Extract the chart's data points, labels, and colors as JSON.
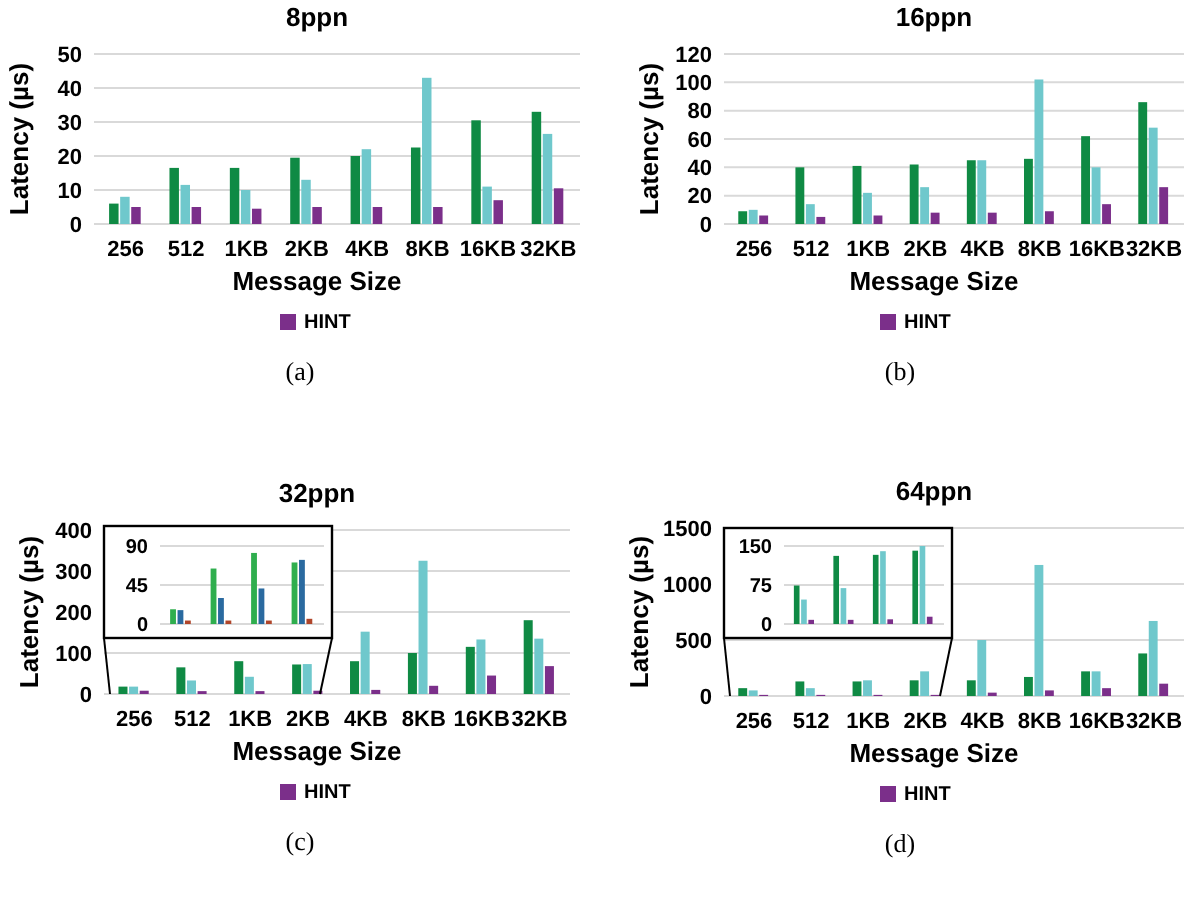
{
  "chart_data": [
    {
      "type": "bar",
      "title": "8ppn",
      "xlabel": "Message Size",
      "ylabel": "Latency (µs)",
      "categories": [
        "256",
        "512",
        "1KB",
        "2KB",
        "4KB",
        "8KB",
        "16KB",
        "32KB"
      ],
      "ylim": [
        0,
        50
      ],
      "yticks": [
        0,
        10,
        20,
        30,
        40,
        50
      ],
      "grid": "y",
      "legend": "bottom",
      "annotations": [
        "(a)"
      ],
      "series": [
        {
          "color": "#0f8a44",
          "values": [
            6,
            16.5,
            16.5,
            19.5,
            20,
            22.5,
            30.5,
            33
          ]
        },
        {
          "color": "#6fc8cc",
          "values": [
            8,
            11.5,
            10,
            13,
            22,
            43,
            11,
            26.5
          ]
        },
        {
          "name": "HINT",
          "color": "#7b2f8a",
          "values": [
            5,
            5,
            4.5,
            5,
            5,
            5,
            7,
            10.5
          ]
        }
      ]
    },
    {
      "type": "bar",
      "title": "16ppn",
      "xlabel": "Message Size",
      "ylabel": "Latency (µs)",
      "categories": [
        "256",
        "512",
        "1KB",
        "2KB",
        "4KB",
        "8KB",
        "16KB",
        "32KB"
      ],
      "ylim": [
        0,
        120
      ],
      "yticks": [
        0,
        20,
        40,
        60,
        80,
        100,
        120
      ],
      "grid": "y",
      "legend": "bottom",
      "annotations": [
        "(b)"
      ],
      "series": [
        {
          "color": "#0f8a44",
          "values": [
            9,
            40,
            41,
            42,
            45,
            46,
            62,
            86
          ]
        },
        {
          "color": "#6fc8cc",
          "values": [
            10,
            14,
            22,
            26,
            45,
            102,
            40,
            68
          ]
        },
        {
          "name": "HINT",
          "color": "#7b2f8a",
          "values": [
            6,
            5,
            6,
            8,
            8,
            9,
            14,
            26
          ]
        }
      ]
    },
    {
      "type": "bar",
      "title": "32ppn",
      "xlabel": "Message Size",
      "ylabel": "Latency (µs)",
      "categories": [
        "256",
        "512",
        "1KB",
        "2KB",
        "4KB",
        "8KB",
        "16KB",
        "32KB"
      ],
      "ylim": [
        0,
        400
      ],
      "yticks": [
        0,
        100,
        200,
        300,
        400
      ],
      "grid": "y",
      "legend": "bottom",
      "annotations": [
        "(c)"
      ],
      "series": [
        {
          "color": "#0f8a44",
          "values": [
            18,
            65,
            80,
            72,
            80,
            100,
            115,
            180
          ]
        },
        {
          "color": "#6fc8cc",
          "values": [
            18,
            33,
            42,
            73,
            152,
            325,
            133,
            135
          ]
        },
        {
          "name": "HINT",
          "color": "#7b2f8a",
          "values": [
            8,
            7,
            7,
            8,
            10,
            20,
            45,
            68
          ]
        }
      ]
    },
    {
      "type": "bar",
      "categories": [
        null,
        null,
        null,
        null
      ],
      "ylim": [
        0,
        90
      ],
      "yticks": [
        0,
        45,
        90
      ],
      "grid": "y",
      "tick_labels": "y",
      "series": [
        {
          "color": "#2fae4e",
          "values": [
            17,
            64,
            82,
            71
          ]
        },
        {
          "color": "#2a6aa0",
          "values": [
            16,
            30,
            41,
            74
          ]
        },
        {
          "color": "#b0452a",
          "values": [
            4,
            4,
            4,
            6
          ]
        }
      ]
    },
    {
      "type": "bar",
      "title": "64ppn",
      "xlabel": "Message Size",
      "ylabel": "Latency (µs)",
      "categories": [
        "256",
        "512",
        "1KB",
        "2KB",
        "4KB",
        "8KB",
        "16KB",
        "32KB"
      ],
      "ylim": [
        0,
        1500
      ],
      "yticks": [
        0,
        500,
        1000,
        1500
      ],
      "grid": "y",
      "legend": "bottom",
      "annotations": [
        "(d)"
      ],
      "series": [
        {
          "color": "#0f8a44",
          "values": [
            70,
            130,
            130,
            140,
            140,
            170,
            220,
            380
          ]
        },
        {
          "color": "#6fc8cc",
          "values": [
            50,
            70,
            140,
            220,
            500,
            1170,
            220,
            670
          ]
        },
        {
          "name": "HINT",
          "color": "#7b2f8a",
          "values": [
            10,
            10,
            10,
            10,
            30,
            50,
            70,
            110
          ]
        }
      ]
    },
    {
      "type": "bar",
      "categories": [
        null,
        null,
        null,
        null
      ],
      "ylim": [
        0,
        150
      ],
      "yticks": [
        0,
        75,
        150
      ],
      "grid": "y",
      "tick_labels": "y",
      "series": [
        {
          "color": "#0f8a44",
          "values": [
            74,
            131,
            133,
            141
          ]
        },
        {
          "color": "#6fc8cc",
          "values": [
            47,
            69,
            140,
            150
          ]
        },
        {
          "color": "#7b2f8a",
          "values": [
            8,
            8,
            9,
            14
          ]
        }
      ]
    }
  ]
}
